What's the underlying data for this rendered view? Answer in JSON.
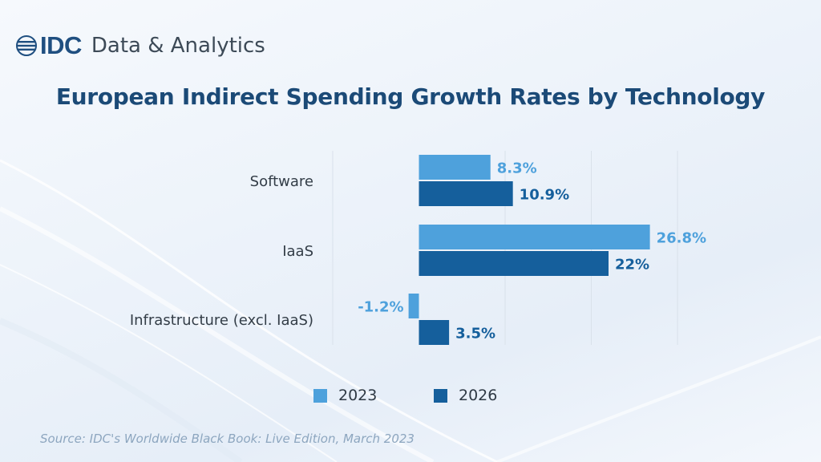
{
  "brand": {
    "name": "IDC",
    "subtitle": "Data & Analytics",
    "logo_icon": "globe-lines-icon",
    "color": "#1f4f80"
  },
  "colors": {
    "series_2023": "#4ea1dc",
    "series_2026": "#155f9c",
    "title": "#1b4a77",
    "gridline": "#d9e1ea"
  },
  "chart_data": {
    "type": "bar",
    "orientation": "horizontal",
    "title": "European Indirect Spending Growth Rates by Technology",
    "categories": [
      "Software",
      "IaaS",
      "Infrastructure (excl. IaaS)"
    ],
    "series": [
      {
        "name": "2023",
        "values": [
          8.3,
          26.8,
          -1.2
        ],
        "labels": [
          "8.3%",
          "26.8%",
          "-1.2%"
        ]
      },
      {
        "name": "2026",
        "values": [
          10.9,
          22,
          3.5
        ],
        "labels": [
          "10.9%",
          "22%",
          "3.5%"
        ]
      }
    ],
    "xlim": [
      -10,
      30
    ],
    "grid": true,
    "legend": "bottom"
  },
  "legend": {
    "items": [
      {
        "label": "2023"
      },
      {
        "label": "2026"
      }
    ]
  },
  "source": "Source: IDC's Worldwide Black Book: Live Edition, March 2023"
}
